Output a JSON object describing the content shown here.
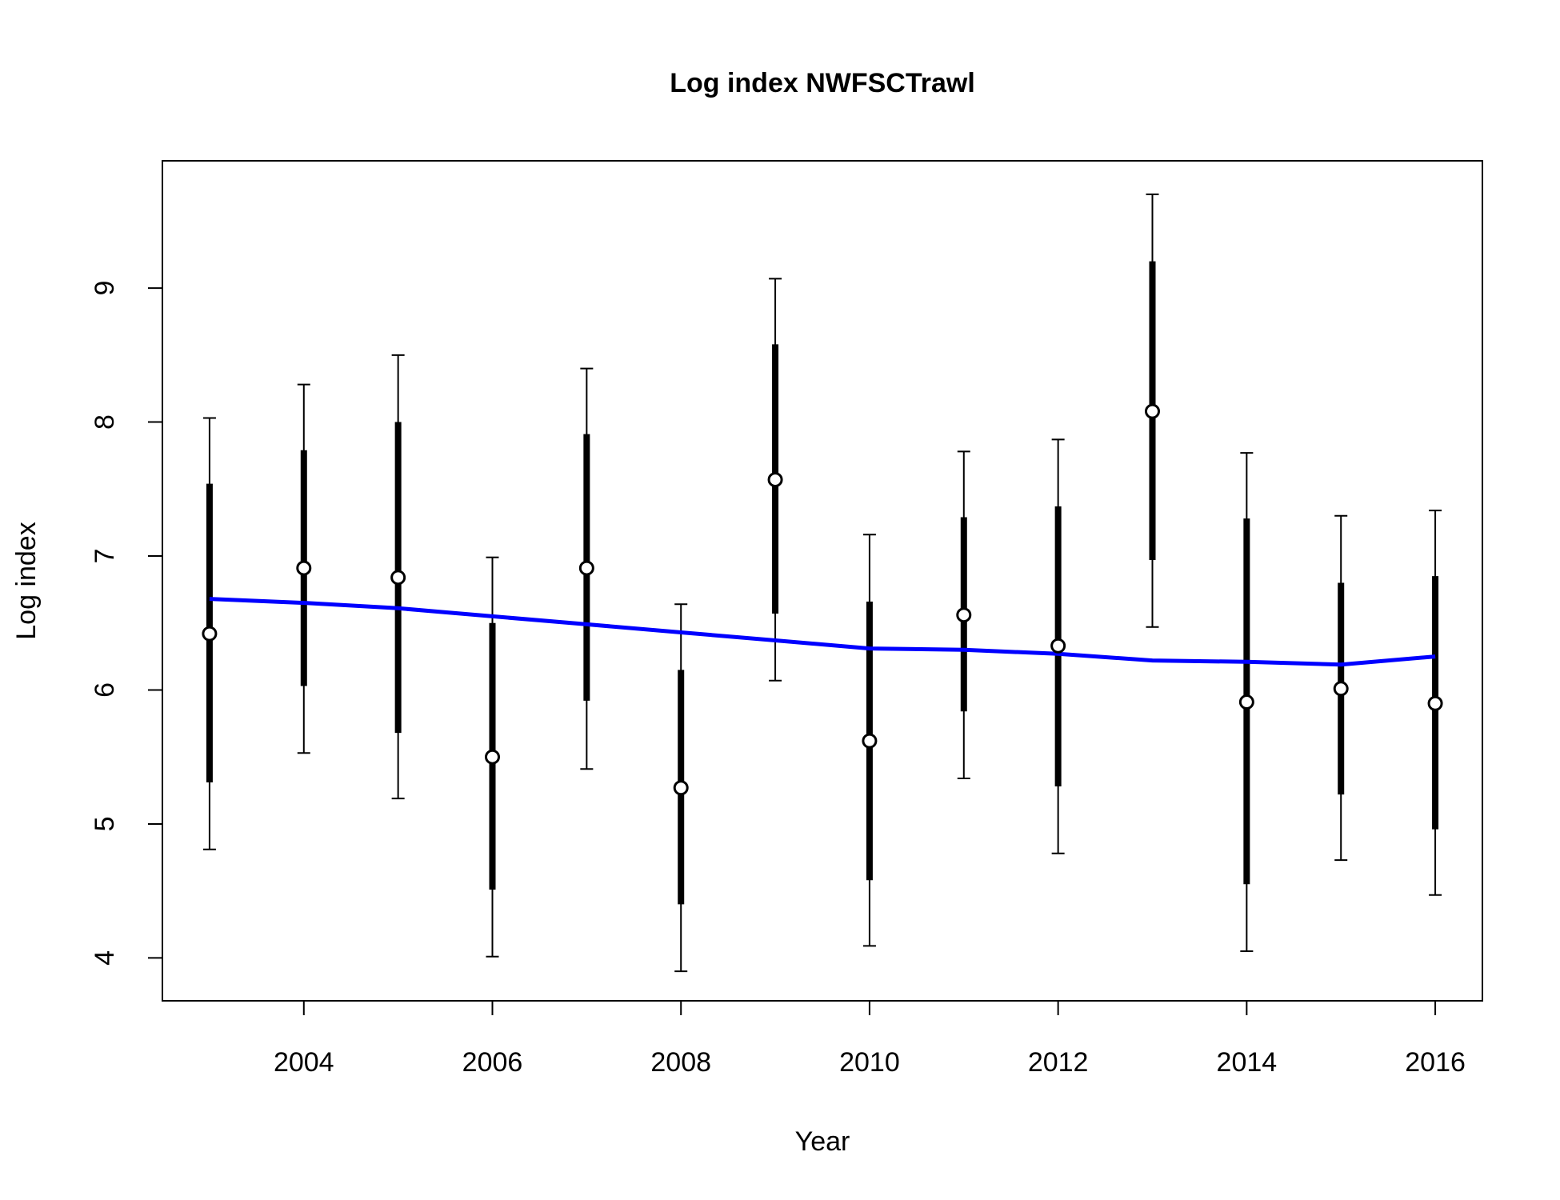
{
  "chart_data": {
    "type": "scatter",
    "title": "Log index NWFSCTrawl",
    "xlabel": "Year",
    "ylabel": "Log index",
    "xlim": [
      2002.5,
      2016.5
    ],
    "ylim": [
      3.68,
      9.95
    ],
    "x_ticks": [
      "2004",
      "2006",
      "2008",
      "2010",
      "2012",
      "2014",
      "2016"
    ],
    "y_ticks": [
      "4",
      "5",
      "6",
      "7",
      "8",
      "9"
    ],
    "grid": false,
    "legend": "none",
    "colors": {
      "points": "#000000",
      "fit_line": "#0000ff"
    },
    "series": [
      {
        "x": [
          2003,
          2004,
          2005,
          2006,
          2007,
          2008,
          2009,
          2010,
          2011,
          2012,
          2013,
          2014,
          2015,
          2016
        ],
        "observed": [
          6.42,
          6.91,
          6.84,
          5.5,
          6.91,
          5.27,
          7.57,
          5.62,
          6.56,
          6.33,
          8.08,
          5.91,
          6.01,
          5.9
        ],
        "inner_lower": [
          5.31,
          6.03,
          5.68,
          4.51,
          5.92,
          4.4,
          6.57,
          4.58,
          5.84,
          5.28,
          6.97,
          4.55,
          5.22,
          4.96
        ],
        "inner_upper": [
          7.54,
          7.79,
          8.0,
          6.5,
          7.91,
          6.15,
          8.58,
          6.66,
          7.29,
          7.37,
          9.2,
          7.28,
          6.8,
          6.85
        ],
        "outer_lower": [
          4.81,
          5.53,
          5.19,
          4.01,
          5.41,
          3.9,
          6.07,
          4.09,
          5.34,
          4.78,
          6.47,
          4.05,
          4.73,
          4.47
        ],
        "outer_upper": [
          8.03,
          8.28,
          8.5,
          6.99,
          8.4,
          6.64,
          9.07,
          7.16,
          7.78,
          7.87,
          9.7,
          7.77,
          7.3,
          7.34
        ]
      },
      {
        "x": [
          2003,
          2004,
          2005,
          2006,
          2007,
          2008,
          2009,
          2010,
          2011,
          2012,
          2013,
          2014,
          2015,
          2016
        ],
        "expected": [
          6.68,
          6.65,
          6.61,
          6.55,
          6.49,
          6.43,
          6.37,
          6.31,
          6.3,
          6.27,
          6.22,
          6.21,
          6.19,
          6.25
        ]
      }
    ]
  }
}
